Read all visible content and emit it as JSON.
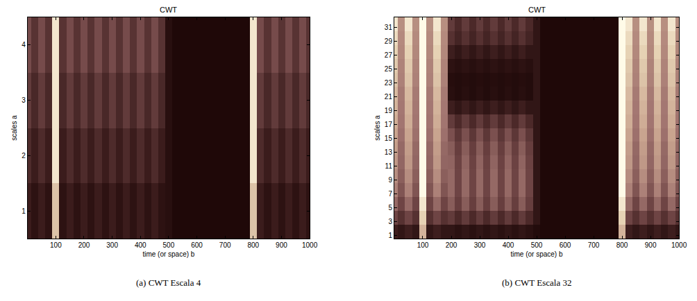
{
  "chart_data": [
    {
      "type": "heatmap",
      "title": "CWT",
      "caption": "(a) CWT Escala 4",
      "x_label": "time (or space) b",
      "y_label": "scales a",
      "xlim": [
        0,
        1000
      ],
      "xticks": [
        100,
        200,
        300,
        400,
        500,
        600,
        700,
        800,
        900,
        1000
      ],
      "ylim": [
        0.5,
        4.5
      ],
      "yticks": [
        1,
        2,
        3,
        4
      ],
      "zlim": [
        0,
        1
      ],
      "x": [
        0,
        25,
        50,
        75,
        100,
        125,
        150,
        175,
        200,
        225,
        250,
        275,
        300,
        325,
        350,
        375,
        400,
        425,
        450,
        475,
        500,
        525,
        550,
        575,
        600,
        625,
        650,
        675,
        700,
        725,
        750,
        775,
        800,
        825,
        850,
        875,
        900,
        925,
        950,
        975,
        1000
      ],
      "y": [
        1,
        2,
        3,
        4
      ],
      "z": [
        [
          0.14,
          0.08,
          0.14,
          0.08,
          0.85,
          0.08,
          0.14,
          0.08,
          0.14,
          0.08,
          0.14,
          0.08,
          0.14,
          0.08,
          0.14,
          0.08,
          0.14,
          0.08,
          0.14,
          0.08,
          0.06,
          0.02,
          0.02,
          0.02,
          0.02,
          0.02,
          0.02,
          0.02,
          0.02,
          0.02,
          0.02,
          0.02,
          0.85,
          0.14,
          0.08,
          0.14,
          0.08,
          0.14,
          0.08,
          0.14,
          0.08
        ],
        [
          0.22,
          0.14,
          0.22,
          0.14,
          0.95,
          0.14,
          0.22,
          0.14,
          0.22,
          0.14,
          0.22,
          0.14,
          0.22,
          0.14,
          0.22,
          0.14,
          0.22,
          0.14,
          0.22,
          0.14,
          0.06,
          0.02,
          0.02,
          0.02,
          0.02,
          0.02,
          0.02,
          0.02,
          0.02,
          0.02,
          0.02,
          0.02,
          0.95,
          0.22,
          0.14,
          0.22,
          0.14,
          0.22,
          0.14,
          0.22,
          0.14
        ],
        [
          0.3,
          0.2,
          0.3,
          0.2,
          0.95,
          0.2,
          0.3,
          0.2,
          0.3,
          0.2,
          0.3,
          0.2,
          0.3,
          0.2,
          0.3,
          0.2,
          0.3,
          0.2,
          0.3,
          0.2,
          0.06,
          0.02,
          0.02,
          0.02,
          0.02,
          0.02,
          0.02,
          0.02,
          0.02,
          0.02,
          0.02,
          0.02,
          0.95,
          0.3,
          0.2,
          0.3,
          0.2,
          0.3,
          0.2,
          0.3,
          0.2
        ],
        [
          0.38,
          0.26,
          0.38,
          0.26,
          0.95,
          0.26,
          0.38,
          0.26,
          0.38,
          0.26,
          0.38,
          0.26,
          0.38,
          0.26,
          0.38,
          0.26,
          0.38,
          0.26,
          0.38,
          0.26,
          0.06,
          0.02,
          0.02,
          0.02,
          0.02,
          0.02,
          0.02,
          0.02,
          0.02,
          0.02,
          0.02,
          0.02,
          0.95,
          0.38,
          0.26,
          0.38,
          0.26,
          0.38,
          0.26,
          0.38,
          0.26
        ]
      ]
    },
    {
      "type": "heatmap",
      "title": "CWT",
      "caption": "(b) CWT Escala 32",
      "x_label": "time (or space) b",
      "y_label": "scales a",
      "xlim": [
        0,
        1000
      ],
      "xticks": [
        100,
        200,
        300,
        400,
        500,
        600,
        700,
        800,
        900,
        1000
      ],
      "ylim": [
        0.5,
        32.5
      ],
      "yticks": [
        1,
        3,
        5,
        7,
        9,
        11,
        13,
        15,
        17,
        19,
        21,
        23,
        25,
        27,
        29,
        31
      ],
      "zlim": [
        0,
        1
      ],
      "x": [
        0,
        25,
        50,
        75,
        100,
        125,
        150,
        175,
        200,
        225,
        250,
        275,
        300,
        325,
        350,
        375,
        400,
        425,
        450,
        475,
        500,
        525,
        550,
        575,
        600,
        625,
        650,
        675,
        700,
        725,
        750,
        775,
        800,
        825,
        850,
        875,
        900,
        925,
        950,
        975,
        1000
      ],
      "y": [
        1.5,
        3.5,
        5.5,
        7.5,
        9.5,
        11.5,
        13.5,
        15.5,
        17.5,
        19.5,
        21.5,
        23.5,
        25.5,
        27.5,
        29.5,
        31.5
      ],
      "z": [
        [
          0.15,
          0.1,
          0.15,
          0.1,
          0.8,
          0.1,
          0.15,
          0.1,
          0.1,
          0.07,
          0.1,
          0.07,
          0.1,
          0.07,
          0.1,
          0.07,
          0.1,
          0.07,
          0.1,
          0.07,
          0.04,
          0.02,
          0.02,
          0.02,
          0.02,
          0.02,
          0.02,
          0.02,
          0.02,
          0.02,
          0.02,
          0.02,
          0.8,
          0.15,
          0.1,
          0.15,
          0.1,
          0.15,
          0.1,
          0.15,
          0.1
        ],
        [
          0.35,
          0.25,
          0.35,
          0.25,
          0.9,
          0.25,
          0.35,
          0.25,
          0.3,
          0.21,
          0.3,
          0.21,
          0.3,
          0.21,
          0.3,
          0.21,
          0.3,
          0.21,
          0.3,
          0.21,
          0.1,
          0.02,
          0.02,
          0.02,
          0.02,
          0.02,
          0.02,
          0.02,
          0.02,
          0.02,
          0.02,
          0.02,
          0.9,
          0.35,
          0.25,
          0.35,
          0.25,
          0.35,
          0.25,
          0.35,
          0.25
        ],
        [
          0.5,
          0.35,
          0.5,
          0.35,
          0.95,
          0.35,
          0.5,
          0.35,
          0.45,
          0.32,
          0.45,
          0.32,
          0.45,
          0.32,
          0.45,
          0.32,
          0.45,
          0.32,
          0.45,
          0.32,
          0.1,
          0.02,
          0.02,
          0.02,
          0.02,
          0.02,
          0.02,
          0.02,
          0.02,
          0.02,
          0.02,
          0.02,
          0.95,
          0.5,
          0.35,
          0.5,
          0.35,
          0.5,
          0.35,
          0.5,
          0.35
        ],
        [
          0.6,
          0.42,
          0.6,
          0.42,
          1.0,
          0.42,
          0.6,
          0.42,
          0.5,
          0.35,
          0.5,
          0.35,
          0.5,
          0.35,
          0.5,
          0.35,
          0.5,
          0.35,
          0.5,
          0.35,
          0.1,
          0.02,
          0.02,
          0.02,
          0.02,
          0.02,
          0.02,
          0.02,
          0.02,
          0.02,
          0.02,
          0.02,
          1.0,
          0.6,
          0.42,
          0.6,
          0.42,
          0.6,
          0.42,
          0.6,
          0.42
        ],
        [
          0.65,
          0.46,
          0.65,
          0.46,
          1.0,
          0.46,
          0.65,
          0.46,
          0.5,
          0.35,
          0.5,
          0.35,
          0.5,
          0.35,
          0.5,
          0.35,
          0.5,
          0.35,
          0.5,
          0.35,
          0.1,
          0.02,
          0.02,
          0.02,
          0.02,
          0.02,
          0.02,
          0.02,
          0.02,
          0.02,
          0.02,
          0.02,
          1.0,
          0.65,
          0.46,
          0.65,
          0.46,
          0.65,
          0.46,
          0.65,
          0.46
        ],
        [
          0.7,
          0.49,
          0.7,
          0.49,
          1.0,
          0.49,
          0.7,
          0.49,
          0.48,
          0.34,
          0.48,
          0.34,
          0.48,
          0.34,
          0.48,
          0.34,
          0.48,
          0.34,
          0.48,
          0.34,
          0.1,
          0.02,
          0.02,
          0.02,
          0.02,
          0.02,
          0.02,
          0.02,
          0.02,
          0.02,
          0.02,
          0.02,
          1.0,
          0.7,
          0.49,
          0.7,
          0.49,
          0.7,
          0.49,
          0.7,
          0.49
        ],
        [
          0.72,
          0.5,
          0.72,
          0.5,
          1.0,
          0.5,
          0.72,
          0.5,
          0.45,
          0.32,
          0.45,
          0.32,
          0.45,
          0.32,
          0.45,
          0.32,
          0.45,
          0.32,
          0.45,
          0.32,
          0.1,
          0.02,
          0.02,
          0.02,
          0.02,
          0.02,
          0.02,
          0.02,
          0.02,
          0.02,
          0.02,
          0.02,
          1.0,
          0.72,
          0.5,
          0.72,
          0.5,
          0.72,
          0.5,
          0.72,
          0.5
        ],
        [
          0.75,
          0.53,
          0.75,
          0.53,
          1.0,
          0.53,
          0.75,
          0.53,
          0.4,
          0.28,
          0.4,
          0.28,
          0.4,
          0.28,
          0.4,
          0.28,
          0.4,
          0.28,
          0.4,
          0.28,
          0.1,
          0.02,
          0.02,
          0.02,
          0.02,
          0.02,
          0.02,
          0.02,
          0.02,
          0.02,
          0.02,
          0.02,
          1.0,
          0.75,
          0.53,
          0.75,
          0.53,
          0.75,
          0.53,
          0.75,
          0.53
        ],
        [
          0.78,
          0.55,
          0.78,
          0.55,
          1.0,
          0.55,
          0.78,
          0.55,
          0.3,
          0.21,
          0.3,
          0.21,
          0.3,
          0.21,
          0.3,
          0.21,
          0.3,
          0.21,
          0.3,
          0.21,
          0.1,
          0.02,
          0.02,
          0.02,
          0.02,
          0.02,
          0.02,
          0.02,
          0.02,
          0.02,
          0.02,
          0.02,
          1.0,
          0.78,
          0.55,
          0.78,
          0.55,
          0.78,
          0.55,
          0.78,
          0.55
        ],
        [
          0.8,
          0.56,
          0.8,
          0.56,
          1.0,
          0.56,
          0.8,
          0.56,
          0.15,
          0.1,
          0.15,
          0.1,
          0.15,
          0.1,
          0.15,
          0.1,
          0.15,
          0.1,
          0.15,
          0.1,
          0.1,
          0.02,
          0.02,
          0.02,
          0.02,
          0.02,
          0.02,
          0.02,
          0.02,
          0.02,
          0.02,
          0.02,
          1.0,
          0.8,
          0.56,
          0.8,
          0.56,
          0.8,
          0.56,
          0.8,
          0.56
        ],
        [
          0.82,
          0.57,
          0.82,
          0.57,
          1.0,
          0.57,
          0.82,
          0.57,
          0.06,
          0.04,
          0.06,
          0.04,
          0.06,
          0.04,
          0.06,
          0.04,
          0.06,
          0.04,
          0.06,
          0.04,
          0.1,
          0.02,
          0.02,
          0.02,
          0.02,
          0.02,
          0.02,
          0.02,
          0.02,
          0.02,
          0.02,
          0.02,
          1.0,
          0.82,
          0.57,
          0.82,
          0.57,
          0.82,
          0.57,
          0.82,
          0.57
        ],
        [
          0.85,
          0.6,
          0.85,
          0.6,
          1.0,
          0.6,
          0.85,
          0.6,
          0.05,
          0.04,
          0.05,
          0.04,
          0.05,
          0.04,
          0.05,
          0.04,
          0.05,
          0.04,
          0.05,
          0.04,
          0.1,
          0.02,
          0.02,
          0.02,
          0.02,
          0.02,
          0.02,
          0.02,
          0.02,
          0.02,
          0.02,
          0.02,
          1.0,
          0.85,
          0.6,
          0.85,
          0.6,
          0.85,
          0.6,
          0.85,
          0.6
        ],
        [
          0.87,
          0.61,
          0.87,
          0.61,
          1.0,
          0.61,
          0.87,
          0.61,
          0.08,
          0.06,
          0.08,
          0.06,
          0.08,
          0.06,
          0.08,
          0.06,
          0.08,
          0.06,
          0.08,
          0.06,
          0.1,
          0.02,
          0.02,
          0.02,
          0.02,
          0.02,
          0.02,
          0.02,
          0.02,
          0.02,
          0.02,
          0.02,
          1.0,
          0.87,
          0.61,
          0.87,
          0.61,
          0.87,
          0.61,
          0.87,
          0.61
        ],
        [
          0.9,
          0.63,
          0.9,
          0.63,
          1.0,
          0.63,
          0.9,
          0.63,
          0.15,
          0.1,
          0.15,
          0.1,
          0.15,
          0.1,
          0.15,
          0.1,
          0.15,
          0.1,
          0.15,
          0.1,
          0.1,
          0.02,
          0.02,
          0.02,
          0.02,
          0.02,
          0.02,
          0.02,
          0.02,
          0.02,
          0.02,
          0.02,
          1.0,
          0.9,
          0.63,
          0.9,
          0.63,
          0.9,
          0.63,
          0.9,
          0.63
        ],
        [
          0.92,
          0.64,
          0.92,
          0.64,
          1.0,
          0.64,
          0.92,
          0.64,
          0.25,
          0.18,
          0.25,
          0.18,
          0.25,
          0.18,
          0.25,
          0.18,
          0.25,
          0.18,
          0.25,
          0.18,
          0.1,
          0.02,
          0.02,
          0.02,
          0.02,
          0.02,
          0.02,
          0.02,
          0.02,
          0.02,
          0.02,
          0.02,
          1.0,
          0.92,
          0.64,
          0.92,
          0.64,
          0.92,
          0.64,
          0.92,
          0.64
        ],
        [
          0.95,
          0.66,
          0.95,
          0.66,
          1.0,
          0.66,
          0.95,
          0.66,
          0.3,
          0.21,
          0.3,
          0.21,
          0.3,
          0.21,
          0.3,
          0.21,
          0.3,
          0.21,
          0.3,
          0.21,
          0.1,
          0.02,
          0.02,
          0.02,
          0.02,
          0.02,
          0.02,
          0.02,
          0.02,
          0.02,
          0.02,
          0.02,
          1.0,
          0.95,
          0.66,
          0.95,
          0.66,
          0.95,
          0.66,
          0.95,
          0.66
        ]
      ]
    }
  ]
}
